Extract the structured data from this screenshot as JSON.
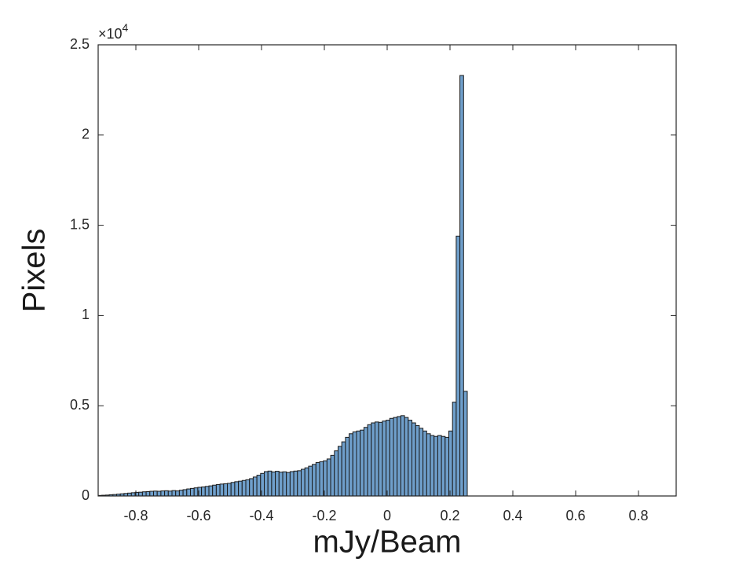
{
  "chart_data": {
    "type": "histogram",
    "x_label": "mJy/Beam",
    "y_label": "Pixels",
    "y_multiplier_base": "×10",
    "y_multiplier_exponent": "4",
    "color": "#6f9fcb",
    "edge_color": "#1a1a1a",
    "bins": [
      -0.92,
      -0.90825,
      -0.8965,
      -0.88475,
      -0.873,
      -0.86125,
      -0.8495,
      -0.83775,
      -0.826,
      -0.81425,
      -0.8025,
      -0.79075,
      -0.779,
      -0.76725,
      -0.7555,
      -0.74375,
      -0.732,
      -0.72025,
      -0.7085,
      -0.69675,
      -0.685,
      -0.67325,
      -0.6615,
      -0.64975,
      -0.638,
      -0.62625,
      -0.6145,
      -0.60275,
      -0.591,
      -0.57925,
      -0.5675,
      -0.55575,
      -0.544,
      -0.53225,
      -0.5205,
      -0.50875,
      -0.497,
      -0.48525,
      -0.4735,
      -0.46175,
      -0.45,
      -0.43825,
      -0.4265,
      -0.41475,
      -0.403,
      -0.39125,
      -0.3795,
      -0.36775,
      -0.356,
      -0.34425,
      -0.3325,
      -0.32075,
      -0.309,
      -0.29725,
      -0.2855,
      -0.27375,
      -0.262,
      -0.25025,
      -0.2385,
      -0.22675,
      -0.215,
      -0.20325,
      -0.1915,
      -0.17975,
      -0.168,
      -0.15625,
      -0.1445,
      -0.13275,
      -0.121,
      -0.10925,
      -0.0975,
      -0.08575,
      -0.074,
      -0.06225,
      -0.0505,
      -0.03875,
      -0.027,
      -0.01525,
      -0.0035,
      0.00825,
      0.02,
      0.03175,
      0.0435,
      0.05525,
      0.067,
      0.07875,
      0.0905,
      0.10225,
      0.114,
      0.12575,
      0.1375,
      0.14925,
      0.161,
      0.17275,
      0.1845,
      0.19625,
      0.208,
      0.21975,
      0.2315,
      0.24325,
      0.255
    ],
    "values": [
      30,
      40,
      50,
      70,
      80,
      100,
      120,
      140,
      160,
      180,
      200,
      210,
      230,
      240,
      260,
      270,
      260,
      280,
      290,
      270,
      300,
      280,
      320,
      350,
      390,
      420,
      450,
      480,
      500,
      530,
      560,
      600,
      630,
      660,
      680,
      700,
      750,
      790,
      820,
      860,
      900,
      960,
      1050,
      1150,
      1250,
      1350,
      1380,
      1330,
      1370,
      1320,
      1340,
      1300,
      1350,
      1380,
      1400,
      1480,
      1560,
      1650,
      1750,
      1850,
      1900,
      1950,
      2050,
      2250,
      2500,
      2750,
      3000,
      3250,
      3450,
      3550,
      3600,
      3650,
      3800,
      3950,
      4050,
      4100,
      4080,
      4150,
      4200,
      4300,
      4350,
      4400,
      4450,
      4350,
      4200,
      4050,
      3900,
      3750,
      3600,
      3450,
      3350,
      3300,
      3350,
      3300,
      3250,
      3600,
      5200,
      14400,
      23300,
      5800
    ],
    "xlim": [
      -0.92,
      0.92
    ],
    "xticks": [
      -0.8,
      -0.6,
      -0.4,
      -0.2,
      0,
      0.2,
      0.4,
      0.6,
      0.8
    ],
    "ylim": [
      0,
      25000
    ],
    "yticks": [
      0,
      {
        "value": 5000,
        "label": "0.5"
      },
      {
        "value": 10000,
        "label": "1"
      },
      {
        "value": 15000,
        "label": "1.5"
      },
      {
        "value": 20000,
        "label": "2"
      },
      {
        "value": 25000,
        "label": "2.5"
      }
    ],
    "grid": false
  }
}
